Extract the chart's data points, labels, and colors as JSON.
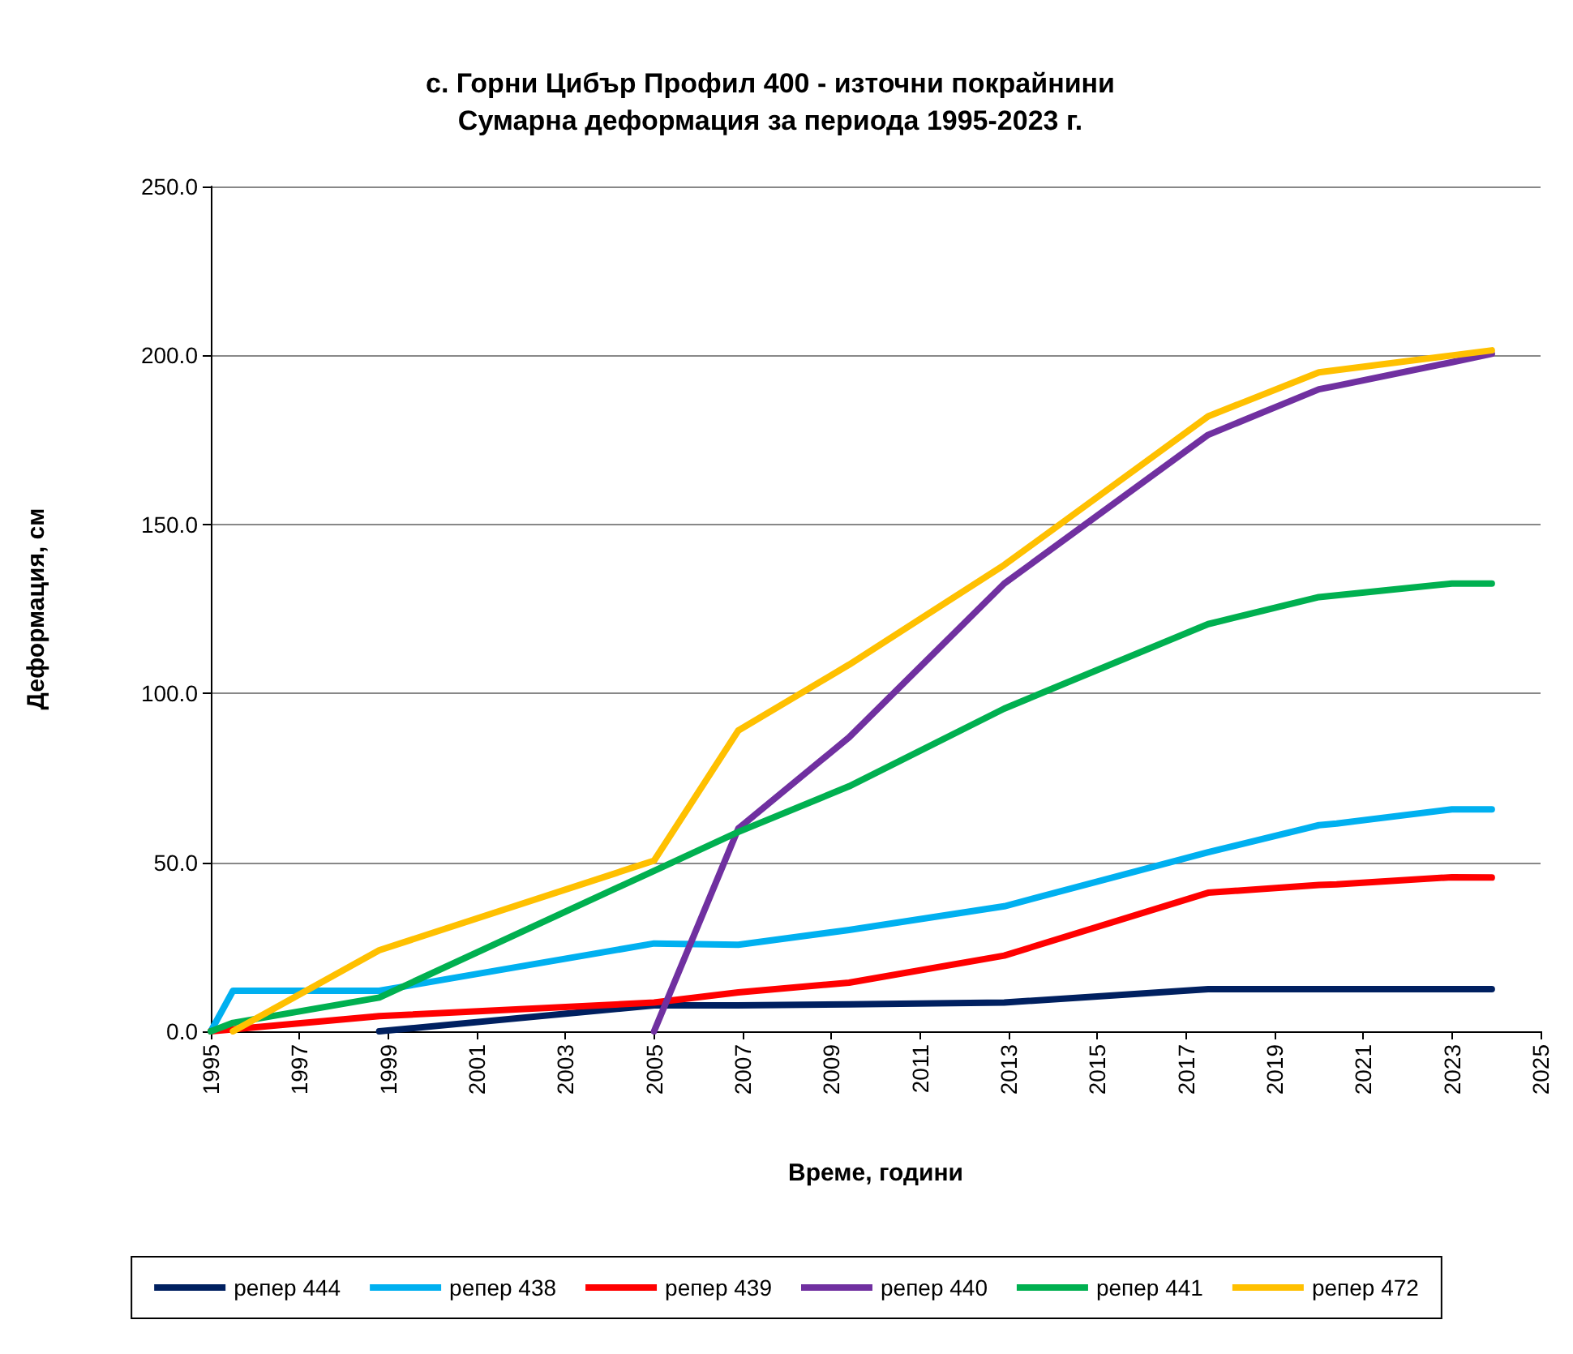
{
  "chart_data": {
    "type": "line",
    "title": "с. Горни Цибър Профил 400 - източни покрайнини\nСумарна деформация за периода 1995-2023 г.",
    "xlabel": "Време, години",
    "ylabel": "Деформация, см",
    "xlim": [
      1995,
      2025
    ],
    "xticks": [
      1995,
      1997,
      1999,
      2001,
      2003,
      2005,
      2007,
      2009,
      2011,
      2013,
      2015,
      2017,
      2019,
      2021,
      2023,
      2025
    ],
    "ylim": [
      0,
      250
    ],
    "yticks": [
      {
        "value": 0,
        "label": "0.0"
      },
      {
        "value": 50,
        "label": "50.0"
      },
      {
        "value": 100,
        "label": "100.0"
      },
      {
        "value": 150,
        "label": "150.0"
      },
      {
        "value": 200,
        "label": "200.0"
      },
      {
        "value": 250,
        "label": "250.0"
      }
    ],
    "grid": "y",
    "legend": "bottom",
    "marker": "none",
    "line_style": "solid",
    "series": [
      {
        "name": "репер 444",
        "color": "#002060",
        "x": [
          1998.8,
          2005,
          2006.9,
          2009.4,
          2012.9,
          2017.5,
          2020,
          2023,
          2023.9
        ],
        "values": [
          0,
          7.7,
          7.7,
          8,
          8.5,
          12.5,
          12.5,
          12.5,
          12.5
        ]
      },
      {
        "name": "репер 438",
        "color": "#00b0f0",
        "x": [
          1995,
          1995.5,
          1998.8,
          2005,
          2006.9,
          2009.4,
          2012.9,
          2017.5,
          2020,
          2020.4,
          2023,
          2023.9
        ],
        "values": [
          0,
          12,
          12,
          26,
          25.6,
          30,
          37,
          53,
          61,
          61.5,
          65.7,
          65.7
        ]
      },
      {
        "name": "репер 439",
        "color": "#ff0000",
        "x": [
          1995,
          1998.8,
          2005,
          2006.9,
          2009.4,
          2012.9,
          2017.5,
          2020,
          2020.4,
          2023,
          2023.9
        ],
        "values": [
          0,
          4.5,
          8.5,
          11.5,
          14.4,
          22.4,
          41,
          43.3,
          43.5,
          45.6,
          45.5
        ]
      },
      {
        "name": "репер 440",
        "color": "#7030a0",
        "x": [
          2005,
          2006.9,
          2009.4,
          2012.9,
          2017.5,
          2020,
          2020.4,
          2023,
          2023.9
        ],
        "values": [
          0,
          60,
          87,
          132.5,
          176.5,
          190,
          191,
          198,
          200.5
        ]
      },
      {
        "name": "репер 441",
        "color": "#00b050",
        "x": [
          1995,
          1995.5,
          1998.8,
          2005,
          2006.9,
          2009.4,
          2012.9,
          2017.5,
          2020,
          2023,
          2023.9
        ],
        "values": [
          0,
          2.5,
          10,
          47.5,
          59,
          72.5,
          95.5,
          120.5,
          128.5,
          132.5,
          132.5
        ]
      },
      {
        "name": "репер 472",
        "color": "#ffc000",
        "x": [
          1995.5,
          1998.8,
          2005,
          2006.9,
          2009.4,
          2012.9,
          2017.5,
          2020,
          2023,
          2023.9
        ],
        "values": [
          0,
          24,
          50.5,
          89,
          108.5,
          138,
          182,
          195,
          200,
          201.5
        ]
      }
    ]
  }
}
